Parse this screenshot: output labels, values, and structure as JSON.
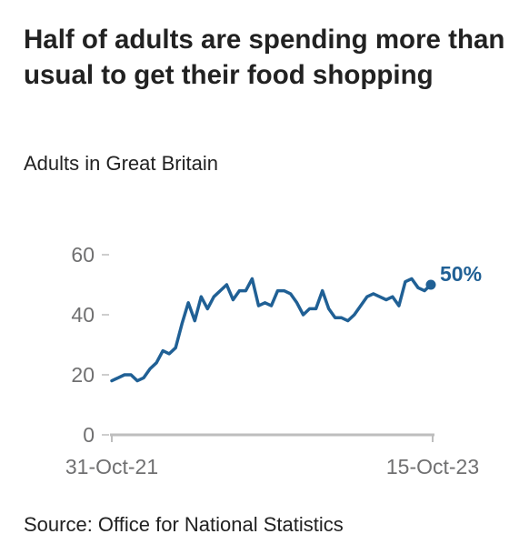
{
  "title": "Half of adults are spending more than usual to get their food shopping",
  "subtitle": "Adults in Great Britain",
  "source": "Source: Office for National Statistics",
  "colors": {
    "line": "#206095",
    "axis": "#bebebe",
    "tick_text": "#707071",
    "text": "#222222"
  },
  "chart_data": {
    "type": "line",
    "title": "Half of adults are spending more than usual to get their food shopping",
    "subtitle": "Adults in Great Britain",
    "xlabel": "",
    "ylabel": "",
    "ylim": [
      0,
      60
    ],
    "yticks": [
      0,
      20,
      40,
      60
    ],
    "x_tick_labels": [
      "31-Oct-21",
      "15-Oct-23"
    ],
    "end_label": "50%",
    "grid": false,
    "legend": "none",
    "series": [
      {
        "values": [
          18,
          19,
          20,
          20,
          18,
          19,
          22,
          24,
          28,
          27,
          29,
          37,
          44,
          38,
          46,
          42,
          46,
          48,
          50,
          45,
          48,
          48,
          52,
          43,
          44,
          43,
          48,
          48,
          47,
          44,
          40,
          42,
          42,
          48,
          42,
          39,
          39,
          38,
          40,
          43,
          46,
          47,
          46,
          45,
          46,
          43,
          51,
          52,
          49,
          48,
          50
        ]
      }
    ]
  }
}
